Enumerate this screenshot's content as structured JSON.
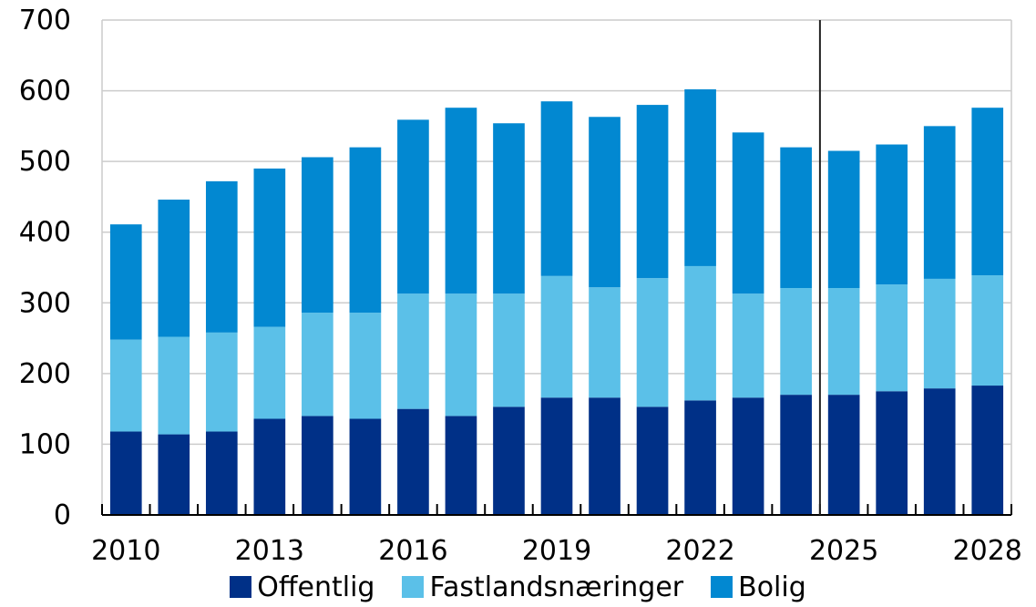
{
  "chart_data": {
    "type": "bar",
    "stacked": true,
    "categories": [
      "2010",
      "2011",
      "2012",
      "2013",
      "2014",
      "2015",
      "2016",
      "2017",
      "2018",
      "2019",
      "2020",
      "2021",
      "2022",
      "2023",
      "2024",
      "2025",
      "2026",
      "2027",
      "2028"
    ],
    "x_tick_labels": [
      "2010",
      "2013",
      "2016",
      "2019",
      "2022",
      "2025",
      "2028"
    ],
    "y_tick_labels": [
      "0",
      "100",
      "200",
      "300",
      "400",
      "500",
      "600",
      "700"
    ],
    "ylim": [
      0,
      700
    ],
    "y_gridlines": true,
    "separator_between": [
      "2024",
      "2025"
    ],
    "legend_position": "bottom",
    "series": [
      {
        "name": "Offentlig",
        "color": "#003087",
        "values": [
          118,
          114,
          118,
          136,
          140,
          136,
          150,
          140,
          153,
          166,
          166,
          153,
          162,
          166,
          170,
          170,
          175,
          179,
          183
        ]
      },
      {
        "name": "Fastlandsnæringer",
        "color": "#5BC0E8",
        "values": [
          130,
          138,
          140,
          130,
          146,
          150,
          163,
          173,
          160,
          172,
          156,
          182,
          190,
          147,
          151,
          151,
          151,
          155,
          156
        ]
      },
      {
        "name": "Bolig",
        "color": "#0288D1",
        "values": [
          163,
          194,
          214,
          224,
          220,
          234,
          246,
          263,
          241,
          247,
          241,
          245,
          250,
          228,
          199,
          194,
          198,
          216,
          237
        ]
      }
    ]
  }
}
